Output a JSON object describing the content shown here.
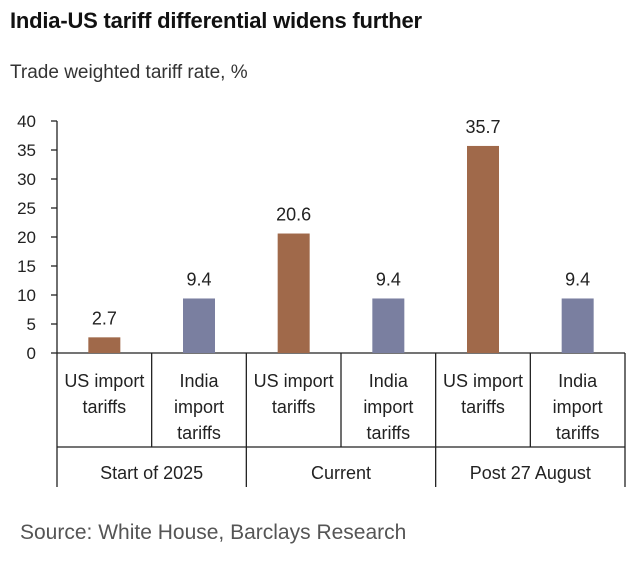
{
  "title": "India-US tariff differential widens further",
  "subtitle": "Trade weighted tariff rate, %",
  "source": "Source: White House, Barclays Research",
  "colors": {
    "us": "#A0694A",
    "india": "#7A7FA0",
    "axis": "#222222"
  },
  "chart_data": {
    "type": "bar",
    "title": "India-US tariff differential widens further",
    "ylabel": "Trade weighted tariff rate, %",
    "xlabel": "",
    "ylim": [
      0,
      40
    ],
    "yticks": [
      0,
      5,
      10,
      15,
      20,
      25,
      30,
      35,
      40
    ],
    "grid": false,
    "groups": [
      "Start of 2025",
      "Current",
      "Post 27 August"
    ],
    "categories": [
      {
        "label": [
          "US import",
          "tariffs"
        ],
        "group": 0,
        "series": "us"
      },
      {
        "label": [
          "India",
          "import",
          "tariffs"
        ],
        "group": 0,
        "series": "india"
      },
      {
        "label": [
          "US import",
          "tariffs"
        ],
        "group": 1,
        "series": "us"
      },
      {
        "label": [
          "India",
          "import",
          "tariffs"
        ],
        "group": 1,
        "series": "india"
      },
      {
        "label": [
          "US import",
          "tariffs"
        ],
        "group": 2,
        "series": "us"
      },
      {
        "label": [
          "India",
          "import",
          "tariffs"
        ],
        "group": 2,
        "series": "india"
      }
    ],
    "values": [
      2.7,
      9.4,
      20.6,
      9.4,
      35.7,
      9.4
    ],
    "data_labels": [
      "2.7",
      "9.4",
      "20.6",
      "9.4",
      "35.7",
      "9.4"
    ]
  }
}
